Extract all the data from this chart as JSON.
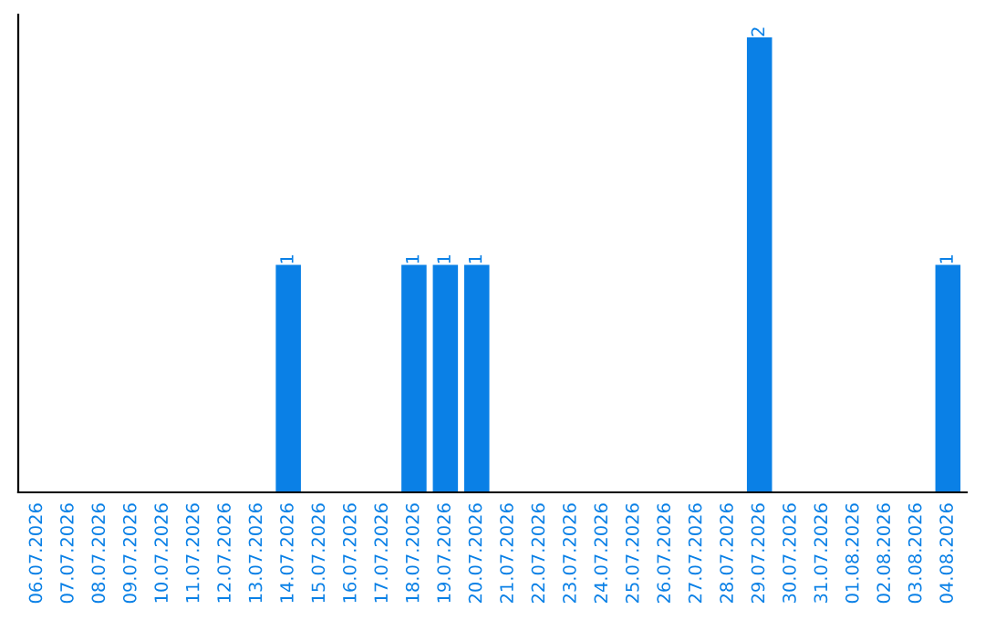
{
  "chart_data": {
    "type": "bar",
    "categories": [
      "06.07.2026",
      "07.07.2026",
      "08.07.2026",
      "09.07.2026",
      "10.07.2026",
      "11.07.2026",
      "12.07.2026",
      "13.07.2026",
      "14.07.2026",
      "15.07.2026",
      "16.07.2026",
      "17.07.2026",
      "18.07.2026",
      "19.07.2026",
      "20.07.2026",
      "21.07.2026",
      "22.07.2026",
      "23.07.2026",
      "24.07.2026",
      "25.07.2026",
      "26.07.2026",
      "27.07.2026",
      "28.07.2026",
      "29.07.2026",
      "30.07.2026",
      "31.07.2026",
      "01.08.2026",
      "02.08.2026",
      "03.08.2026",
      "04.08.2026"
    ],
    "values": [
      0,
      0,
      0,
      0,
      0,
      0,
      0,
      0,
      1,
      0,
      0,
      0,
      1,
      1,
      1,
      0,
      0,
      0,
      0,
      0,
      0,
      0,
      0,
      2,
      0,
      0,
      0,
      0,
      0,
      1
    ],
    "value_labels": [
      null,
      null,
      null,
      null,
      null,
      null,
      null,
      null,
      "1",
      null,
      null,
      null,
      "1",
      "1",
      "1",
      null,
      null,
      null,
      null,
      null,
      null,
      null,
      null,
      "2",
      null,
      null,
      null,
      null,
      null,
      "1"
    ],
    "color": "#0a80e6",
    "grid": false,
    "tick_labels": "x"
  }
}
